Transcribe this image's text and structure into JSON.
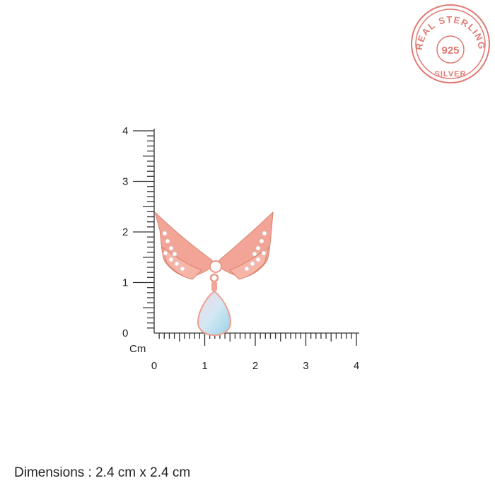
{
  "ruler": {
    "unit_label": "Cm",
    "y_ticks": [
      "0",
      "1",
      "2",
      "3",
      "4"
    ],
    "x_ticks": [
      "0",
      "1",
      "2",
      "3",
      "4"
    ],
    "range_cm": [
      0,
      4
    ],
    "minor_step_cm": 0.1
  },
  "stamp": {
    "top_text": "REAL STERLING",
    "center_text": "925",
    "bottom_text": "SILVER",
    "color": "#e07a72"
  },
  "product": {
    "description_colors": {
      "metal": "#f0a092",
      "stone": "#bfe0ee"
    }
  },
  "caption": "Dimensions : 2.4  cm x 2.4 cm"
}
